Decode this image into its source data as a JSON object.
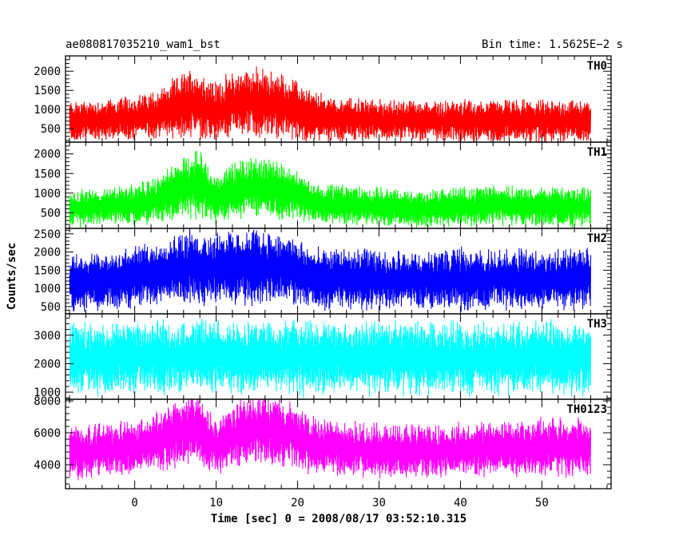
{
  "header": {
    "left_title": "ae080817035210_wam1_bst",
    "right_title": "Bin time: 1.5625E−2 s"
  },
  "chart_data": {
    "type": "line",
    "xlabel": "Time [sec] 0 = 2008/08/17 03:52:10.315",
    "ylabel": "Counts/sec",
    "xlim": [
      -8.5,
      58.5
    ],
    "x_ticks": [
      0,
      10,
      20,
      30,
      40,
      50
    ],
    "x_tick_labels": [
      "0",
      "10",
      "20",
      "30",
      "40",
      "50"
    ],
    "x_data_range": [
      -8,
      56
    ],
    "bin_time_s": 0.015625,
    "panels": [
      {
        "name": "TH0",
        "color": "#ff0000",
        "ylim": [
          150,
          2400
        ],
        "y_ticks": [
          500,
          1000,
          1500,
          2000
        ],
        "y_tick_labels": [
          "500",
          "1000",
          "1500",
          "2000"
        ],
        "envelope": {
          "x": [
            -8,
            -4,
            0,
            3,
            5,
            7,
            9,
            10,
            12,
            14,
            16,
            18,
            20,
            22,
            25,
            30,
            35,
            40,
            45,
            50,
            56
          ],
          "mean": [
            700,
            720,
            780,
            900,
            1050,
            1200,
            1000,
            950,
            1150,
            1200,
            1150,
            1100,
            950,
            820,
            750,
            720,
            700,
            700,
            720,
            700,
            720
          ],
          "spread": [
            420,
            420,
            450,
            500,
            600,
            700,
            650,
            600,
            650,
            700,
            700,
            650,
            600,
            500,
            450,
            420,
            420,
            420,
            430,
            420,
            430
          ]
        }
      },
      {
        "name": "TH1",
        "color": "#00ff00",
        "ylim": [
          100,
          2300
        ],
        "y_ticks": [
          500,
          1000,
          1500,
          2000
        ],
        "y_tick_labels": [
          "500",
          "1000",
          "1500",
          "2000"
        ],
        "envelope": {
          "x": [
            -8,
            -4,
            0,
            3,
            5,
            7,
            8,
            9,
            10,
            12,
            14,
            16,
            18,
            20,
            22,
            25,
            30,
            35,
            40,
            45,
            50,
            56
          ],
          "mean": [
            600,
            650,
            700,
            850,
            1050,
            1200,
            1250,
            1000,
            850,
            1050,
            1150,
            1150,
            1100,
            950,
            750,
            700,
            650,
            600,
            650,
            700,
            650,
            650
          ],
          "spread": [
            380,
            380,
            400,
            450,
            550,
            650,
            700,
            600,
            500,
            550,
            600,
            600,
            580,
            500,
            420,
            400,
            380,
            380,
            390,
            400,
            390,
            400
          ]
        }
      },
      {
        "name": "TH2",
        "color": "#0000ff",
        "ylim": [
          300,
          2650
        ],
        "y_ticks": [
          500,
          1000,
          1500,
          2000,
          2500
        ],
        "y_tick_labels": [
          "500",
          "1000",
          "1500",
          "2000",
          "2500"
        ],
        "envelope": {
          "x": [
            -8,
            -4,
            0,
            3,
            5,
            7,
            10,
            14,
            17,
            20,
            22,
            25,
            30,
            35,
            40,
            45,
            50,
            56
          ],
          "mean": [
            1150,
            1200,
            1300,
            1450,
            1550,
            1600,
            1550,
            1600,
            1600,
            1450,
            1250,
            1250,
            1250,
            1200,
            1250,
            1250,
            1250,
            1250
          ],
          "spread": [
            600,
            620,
            650,
            700,
            750,
            800,
            780,
            800,
            780,
            700,
            650,
            650,
            650,
            620,
            650,
            650,
            650,
            650
          ]
        }
      },
      {
        "name": "TH3",
        "color": "#00ffff",
        "ylim": [
          750,
          3750
        ],
        "y_ticks": [
          1000,
          2000,
          3000
        ],
        "y_tick_labels": [
          "1000",
          "2000",
          "3000"
        ],
        "envelope": {
          "x": [
            -8,
            0,
            10,
            20,
            30,
            40,
            50,
            56
          ],
          "mean": [
            2200,
            2200,
            2250,
            2200,
            2200,
            2200,
            2200,
            2200
          ],
          "spread": [
            1000,
            1000,
            1000,
            1000,
            1000,
            1000,
            1000,
            1000
          ]
        }
      },
      {
        "name": "TH0123",
        "color": "#ff00ff",
        "ylim": [
          2500,
          8100
        ],
        "y_ticks": [
          4000,
          6000,
          8000
        ],
        "y_tick_labels": [
          "4000",
          "6000",
          "8000"
        ],
        "envelope": {
          "x": [
            -8,
            -4,
            0,
            3,
            5,
            7,
            8,
            9,
            10,
            12,
            14,
            16,
            18,
            20,
            22,
            25,
            30,
            35,
            40,
            45,
            50,
            56
          ],
          "mean": [
            4800,
            4900,
            5100,
            5500,
            5900,
            6300,
            6000,
            5400,
            5200,
            5800,
            6200,
            6300,
            6100,
            5700,
            5200,
            5000,
            4900,
            4800,
            4900,
            5000,
            5100,
            5100
          ],
          "spread": [
            1300,
            1300,
            1350,
            1450,
            1600,
            1800,
            1700,
            1500,
            1400,
            1500,
            1650,
            1700,
            1650,
            1500,
            1400,
            1350,
            1300,
            1300,
            1300,
            1350,
            1400,
            1400
          ]
        }
      }
    ]
  }
}
